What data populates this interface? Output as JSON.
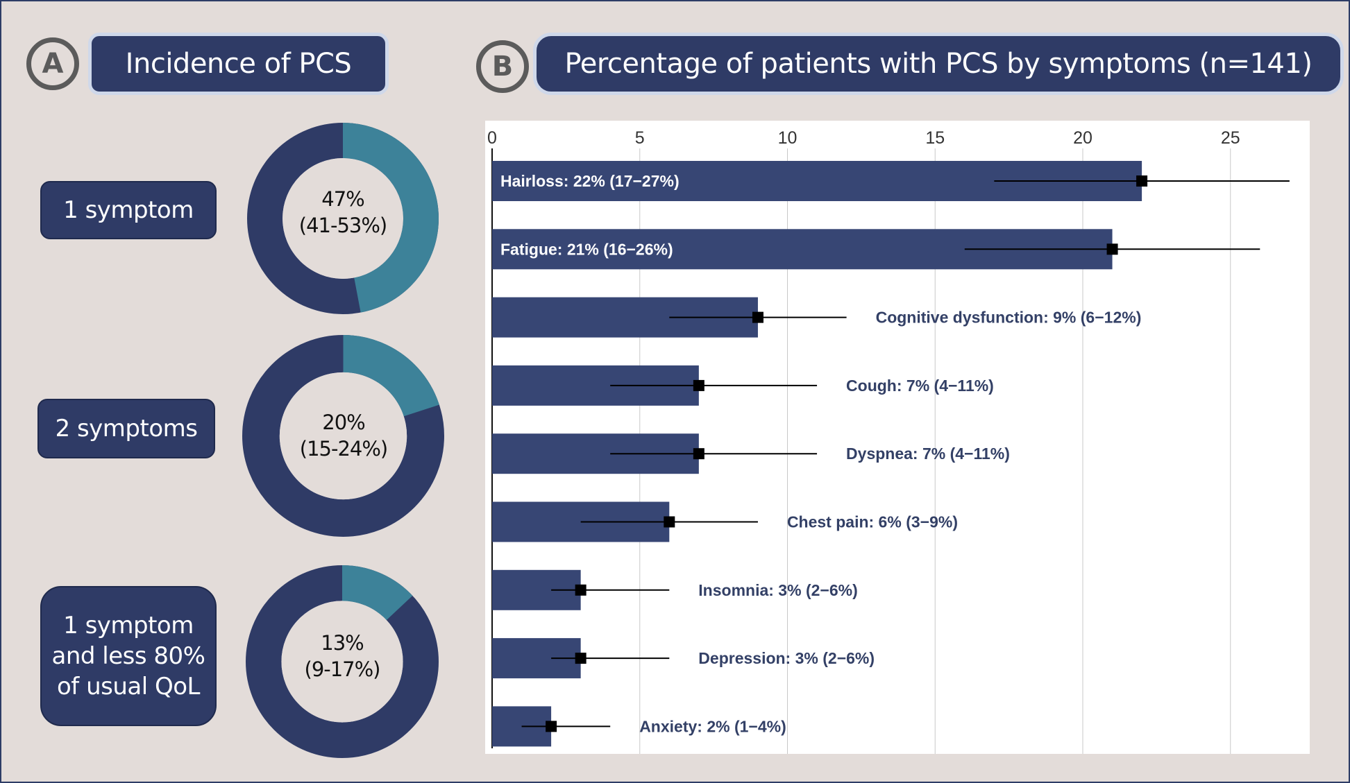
{
  "panel_a": {
    "letter": "A",
    "title": "Incidence of PCS",
    "rows": [
      {
        "label": "1 symptom",
        "value_text": "47%",
        "ci_text": "(41-53%)",
        "fraction": 0.47
      },
      {
        "label": "2 symptoms",
        "value_text": "20%",
        "ci_text": "(15-24%)",
        "fraction": 0.2
      },
      {
        "label": "1 symptom\nand less 80%\nof usual QoL",
        "value_text": "13%",
        "ci_text": "(9-17%)",
        "fraction": 0.13
      }
    ],
    "colors": {
      "highlight": "#3d8299",
      "rest": "#2f3b66",
      "hole": "#e3dcd9"
    }
  },
  "panel_b": {
    "letter": "B",
    "title": "Percentage of patients with PCS by symptoms (n=141)"
  },
  "chart_data": {
    "type": "bar",
    "orientation": "horizontal",
    "title": "Percentage of patients with PCS by symptoms (n=141)",
    "xlim": [
      0,
      27
    ],
    "xticks": [
      0,
      5,
      10,
      15,
      20,
      25
    ],
    "grid": "vertical",
    "bar_color": "#374674",
    "label_color": "#334066",
    "bars": [
      {
        "label": "Hairloss: 22% (17−27%)",
        "value": 22,
        "lo": 17,
        "hi": 27,
        "label_inside": true
      },
      {
        "label": "Fatigue: 21% (16−26%)",
        "value": 21,
        "lo": 16,
        "hi": 26,
        "label_inside": true
      },
      {
        "label": "Cognitive dysfunction: 9% (6−12%)",
        "value": 9,
        "lo": 6,
        "hi": 12,
        "label_inside": false
      },
      {
        "label": "Cough: 7% (4−11%)",
        "value": 7,
        "lo": 4,
        "hi": 11,
        "label_inside": false
      },
      {
        "label": "Dyspnea: 7% (4−11%)",
        "value": 7,
        "lo": 4,
        "hi": 11,
        "label_inside": false
      },
      {
        "label": "Chest pain: 6% (3−9%)",
        "value": 6,
        "lo": 3,
        "hi": 9,
        "label_inside": false
      },
      {
        "label": "Insomnia: 3% (2−6%)",
        "value": 3,
        "lo": 2,
        "hi": 6,
        "label_inside": false
      },
      {
        "label": "Depression: 3% (2−6%)",
        "value": 3,
        "lo": 2,
        "hi": 6,
        "label_inside": false
      },
      {
        "label": "Anxiety: 2% (1−4%)",
        "value": 2,
        "lo": 1,
        "hi": 4,
        "label_inside": false
      }
    ]
  }
}
